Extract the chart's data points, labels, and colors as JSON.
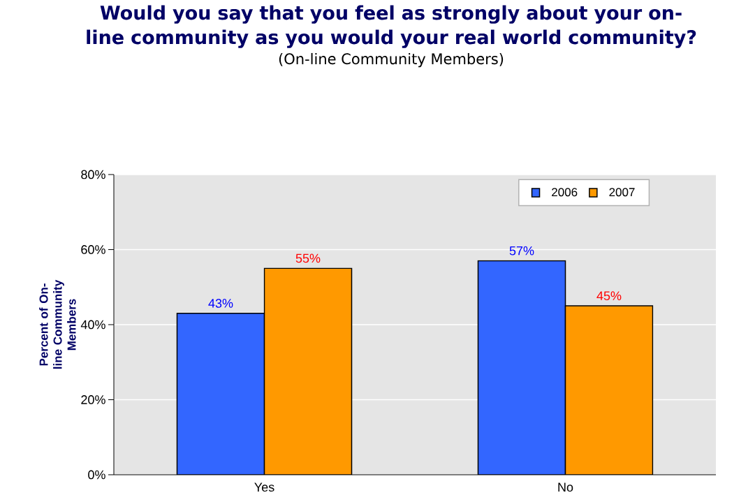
{
  "chart_data": {
    "type": "bar",
    "title": "Would you say that you feel as strongly about your on-line community as you would your real world community?",
    "subtitle": "(On-line Community Members)",
    "ylabel": "Percent of On-line Community Members",
    "categories": [
      "Yes",
      "No"
    ],
    "series": [
      {
        "name": "2006",
        "color": "#3366ff",
        "values": [
          43,
          57
        ],
        "value_labels": [
          "43%",
          "57%"
        ]
      },
      {
        "name": "2007",
        "color": "#ff9900",
        "values": [
          55,
          45
        ],
        "value_labels": [
          "55%",
          "45%"
        ]
      }
    ],
    "ylim": [
      0,
      80
    ],
    "yticks": [
      {
        "value": 0,
        "label": "0%"
      },
      {
        "value": 20,
        "label": "20%"
      },
      {
        "value": 40,
        "label": "40%"
      },
      {
        "value": 60,
        "label": "60%"
      },
      {
        "value": 80,
        "label": "80%"
      }
    ],
    "grid": "y",
    "legend": "top right"
  }
}
